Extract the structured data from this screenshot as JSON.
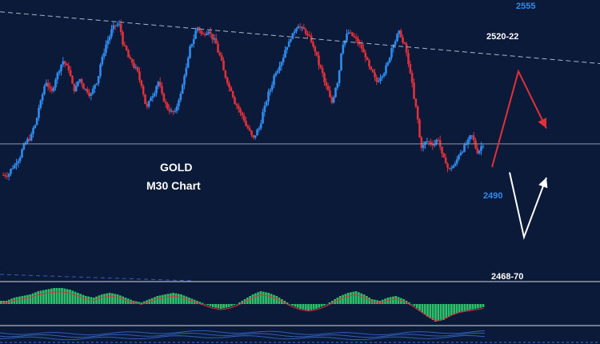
{
  "chart_data": {
    "type": "candlestick",
    "instrument_label": "GOLD",
    "timeframe_label": "M30 Chart",
    "grid": false,
    "colors": {
      "background": "#0b1a38",
      "bull_candle": "#2f8cf0",
      "bear_candle": "#e0303a",
      "trendline": "#aab6cc",
      "horizontal_line": "#8d97ab",
      "projection_up_down": "#e0303a",
      "projection_down_up": "#ffffff",
      "macd_histogram": "#2dbf6a",
      "macd_signal": "#e0303a",
      "bottom_panel_line": "#3a6fd8"
    },
    "price_range": [
      2455,
      2560
    ],
    "candles_approx_closes": [
      2494,
      2497,
      2500,
      2505,
      2508,
      2513,
      2522,
      2530,
      2526,
      2533,
      2538,
      2535,
      2527,
      2531,
      2527,
      2525,
      2530,
      2539,
      2546,
      2551,
      2552,
      2543,
      2538,
      2535,
      2529,
      2520,
      2525,
      2530,
      2523,
      2519,
      2518,
      2525,
      2535,
      2545,
      2551,
      2548,
      2550,
      2546,
      2540,
      2532,
      2527,
      2521,
      2517,
      2512,
      2508,
      2512,
      2520,
      2527,
      2534,
      2538,
      2544,
      2548,
      2552,
      2550,
      2547,
      2542,
      2535,
      2528,
      2522,
      2530,
      2545,
      2549,
      2547,
      2544,
      2540,
      2534,
      2530,
      2533,
      2537,
      2545,
      2549,
      2544,
      2534,
      2520,
      2505,
      2507,
      2506,
      2508,
      2500,
      2496,
      2498,
      2503,
      2506,
      2509,
      2503,
      2506
    ],
    "levels": [
      {
        "label": "2555",
        "value": 2555,
        "color": "blue"
      },
      {
        "label": "2520-22",
        "value": 2521,
        "color": "white"
      },
      {
        "label": "2490",
        "value": 2490,
        "color": "blue"
      },
      {
        "label": "2468-70",
        "value": 2469,
        "color": "white"
      }
    ],
    "horizontal_line_price": 2506,
    "trendline_prices": [
      2557,
      2537
    ],
    "projection_1_prices": [
      2497,
      2534,
      2512
    ],
    "projection_2_prices": [
      2495,
      2470,
      2493
    ],
    "macd_histogram_approx": [
      0.2,
      0.4,
      0.5,
      0.6,
      0.8,
      0.9,
      1.0,
      1.0,
      0.9,
      0.7,
      0.5,
      0.4,
      0.6,
      0.7,
      0.6,
      0.4,
      0.2,
      0.1,
      0.3,
      0.5,
      0.6,
      0.7,
      0.6,
      0.4,
      0.2,
      0.0,
      -0.2,
      -0.3,
      -0.2,
      0.0,
      0.3,
      0.6,
      0.8,
      0.7,
      0.5,
      0.2,
      -0.1,
      -0.3,
      -0.4,
      -0.3,
      -0.1,
      0.2,
      0.5,
      0.7,
      0.8,
      0.6,
      0.3,
      0.2,
      0.4,
      0.5,
      0.3,
      0.0,
      -0.4,
      -0.8,
      -1.1,
      -1.0,
      -0.7,
      -0.5,
      -0.4,
      -0.3,
      -0.2
    ]
  }
}
